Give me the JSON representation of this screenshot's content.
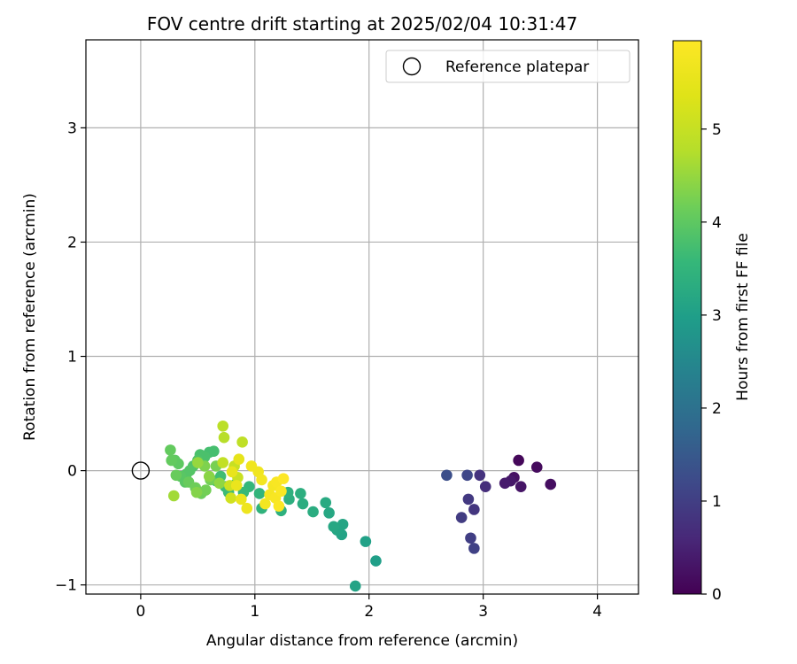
{
  "chart_data": {
    "type": "scatter",
    "title": "FOV centre drift starting at 2025/02/04 10:31:47",
    "xlabel": "Angular distance from reference (arcmin)",
    "ylabel": "Rotation from reference (arcmin)",
    "xlim": [
      -0.48,
      4.36
    ],
    "ylim": [
      -1.08,
      3.77
    ],
    "xticks": [
      0,
      1,
      2,
      3,
      4
    ],
    "yticks": [
      -1,
      0,
      1,
      2,
      3
    ],
    "grid": true,
    "legend_position": "upper right",
    "colormap": "viridis",
    "colorbar": {
      "label": "Hours from first FF file",
      "range": [
        0,
        5.95
      ],
      "ticks": [
        0,
        1,
        2,
        3,
        4,
        5
      ]
    },
    "reference": {
      "name": "Reference platepar",
      "x": 0,
      "y": 0,
      "marker": "open-circle"
    },
    "series": [
      {
        "points": [
          {
            "x": 3.31,
            "y": 0.09,
            "h": 0.1
          },
          {
            "x": 3.47,
            "y": 0.03,
            "h": 0.15
          },
          {
            "x": 3.59,
            "y": -0.12,
            "h": 0.2
          },
          {
            "x": 3.27,
            "y": -0.06,
            "h": 0.25
          },
          {
            "x": 3.33,
            "y": -0.14,
            "h": 0.3
          },
          {
            "x": 3.24,
            "y": -0.09,
            "h": 0.35
          },
          {
            "x": 3.19,
            "y": -0.11,
            "h": 0.4
          },
          {
            "x": 3.02,
            "y": -0.14,
            "h": 0.7
          },
          {
            "x": 2.97,
            "y": -0.04,
            "h": 0.8
          },
          {
            "x": 2.92,
            "y": -0.34,
            "h": 0.85
          },
          {
            "x": 2.87,
            "y": -0.25,
            "h": 0.9
          },
          {
            "x": 2.81,
            "y": -0.41,
            "h": 0.95
          },
          {
            "x": 2.89,
            "y": -0.59,
            "h": 1.0
          },
          {
            "x": 2.92,
            "y": -0.68,
            "h": 1.05
          },
          {
            "x": 2.86,
            "y": -0.04,
            "h": 1.15
          },
          {
            "x": 2.68,
            "y": -0.04,
            "h": 1.3
          },
          {
            "x": 2.06,
            "y": -0.79,
            "h": 3.0
          },
          {
            "x": 1.97,
            "y": -0.62,
            "h": 3.05
          },
          {
            "x": 1.88,
            "y": -1.01,
            "h": 3.1
          },
          {
            "x": 1.76,
            "y": -0.56,
            "h": 3.1
          },
          {
            "x": 1.77,
            "y": -0.47,
            "h": 3.15
          },
          {
            "x": 1.72,
            "y": -0.52,
            "h": 3.15
          },
          {
            "x": 1.69,
            "y": -0.49,
            "h": 3.2
          },
          {
            "x": 1.65,
            "y": -0.37,
            "h": 3.2
          },
          {
            "x": 1.62,
            "y": -0.28,
            "h": 3.25
          },
          {
            "x": 1.51,
            "y": -0.36,
            "h": 3.3
          },
          {
            "x": 1.42,
            "y": -0.29,
            "h": 3.3
          },
          {
            "x": 1.4,
            "y": -0.2,
            "h": 3.35
          },
          {
            "x": 1.3,
            "y": -0.25,
            "h": 3.35
          },
          {
            "x": 1.29,
            "y": -0.19,
            "h": 3.4
          },
          {
            "x": 1.23,
            "y": -0.35,
            "h": 3.4
          },
          {
            "x": 1.06,
            "y": -0.33,
            "h": 3.45
          },
          {
            "x": 1.04,
            "y": -0.2,
            "h": 3.5
          },
          {
            "x": 0.95,
            "y": -0.14,
            "h": 3.55
          },
          {
            "x": 0.9,
            "y": -0.19,
            "h": 3.6
          },
          {
            "x": 0.83,
            "y": -0.12,
            "h": 3.6
          },
          {
            "x": 0.77,
            "y": -0.19,
            "h": 3.65
          },
          {
            "x": 0.74,
            "y": -0.14,
            "h": 3.65
          },
          {
            "x": 0.7,
            "y": -0.05,
            "h": 3.7
          },
          {
            "x": 0.66,
            "y": -0.09,
            "h": 3.7
          },
          {
            "x": 0.64,
            "y": 0.17,
            "h": 3.75
          },
          {
            "x": 0.6,
            "y": 0.16,
            "h": 3.75
          },
          {
            "x": 0.56,
            "y": 0.12,
            "h": 3.8
          },
          {
            "x": 0.52,
            "y": 0.14,
            "h": 3.8
          },
          {
            "x": 0.5,
            "y": 0.09,
            "h": 3.85
          },
          {
            "x": 0.46,
            "y": 0.04,
            "h": 3.85
          },
          {
            "x": 0.43,
            "y": 0.0,
            "h": 3.9
          },
          {
            "x": 0.4,
            "y": -0.03,
            "h": 3.9
          },
          {
            "x": 0.39,
            "y": -0.1,
            "h": 3.95
          },
          {
            "x": 0.35,
            "y": -0.05,
            "h": 3.95
          },
          {
            "x": 0.33,
            "y": 0.06,
            "h": 4.0
          },
          {
            "x": 0.3,
            "y": 0.09,
            "h": 4.0
          },
          {
            "x": 0.26,
            "y": 0.18,
            "h": 4.05
          },
          {
            "x": 0.27,
            "y": 0.09,
            "h": 4.05
          },
          {
            "x": 0.31,
            "y": -0.04,
            "h": 4.1
          },
          {
            "x": 0.42,
            "y": -0.1,
            "h": 4.1
          },
          {
            "x": 0.48,
            "y": -0.15,
            "h": 4.15
          },
          {
            "x": 0.53,
            "y": -0.2,
            "h": 4.15
          },
          {
            "x": 0.57,
            "y": -0.17,
            "h": 4.2
          },
          {
            "x": 0.61,
            "y": -0.08,
            "h": 4.2
          },
          {
            "x": 0.66,
            "y": 0.04,
            "h": 4.25
          },
          {
            "x": 0.56,
            "y": 0.04,
            "h": 4.3
          },
          {
            "x": 0.49,
            "y": -0.19,
            "h": 4.35
          },
          {
            "x": 0.6,
            "y": -0.05,
            "h": 4.4
          },
          {
            "x": 0.69,
            "y": -0.11,
            "h": 4.45
          },
          {
            "x": 0.5,
            "y": 0.07,
            "h": 4.5
          },
          {
            "x": 0.29,
            "y": -0.22,
            "h": 4.6
          },
          {
            "x": 0.73,
            "y": 0.29,
            "h": 4.8
          },
          {
            "x": 0.72,
            "y": 0.39,
            "h": 4.85
          },
          {
            "x": 0.89,
            "y": 0.25,
            "h": 4.9
          },
          {
            "x": 0.72,
            "y": 0.07,
            "h": 4.95
          },
          {
            "x": 0.82,
            "y": 0.04,
            "h": 5.0
          },
          {
            "x": 0.85,
            "y": -0.06,
            "h": 5.05
          },
          {
            "x": 0.78,
            "y": -0.13,
            "h": 5.1
          },
          {
            "x": 0.79,
            "y": -0.24,
            "h": 5.15
          },
          {
            "x": 0.86,
            "y": 0.1,
            "h": 5.5
          },
          {
            "x": 0.8,
            "y": -0.01,
            "h": 5.55
          },
          {
            "x": 0.84,
            "y": -0.13,
            "h": 5.6
          },
          {
            "x": 0.88,
            "y": -0.25,
            "h": 5.6
          },
          {
            "x": 0.93,
            "y": -0.33,
            "h": 5.65
          },
          {
            "x": 0.97,
            "y": 0.04,
            "h": 5.7
          },
          {
            "x": 1.03,
            "y": -0.01,
            "h": 5.7
          },
          {
            "x": 1.06,
            "y": -0.08,
            "h": 5.75
          },
          {
            "x": 1.09,
            "y": -0.29,
            "h": 5.75
          },
          {
            "x": 1.13,
            "y": -0.21,
            "h": 5.8
          },
          {
            "x": 1.16,
            "y": -0.13,
            "h": 5.8
          },
          {
            "x": 1.18,
            "y": -0.24,
            "h": 5.85
          },
          {
            "x": 1.19,
            "y": -0.1,
            "h": 5.85
          },
          {
            "x": 1.21,
            "y": -0.31,
            "h": 5.9
          },
          {
            "x": 1.23,
            "y": -0.18,
            "h": 5.9
          },
          {
            "x": 1.25,
            "y": -0.07,
            "h": 5.95
          }
        ]
      }
    ]
  }
}
